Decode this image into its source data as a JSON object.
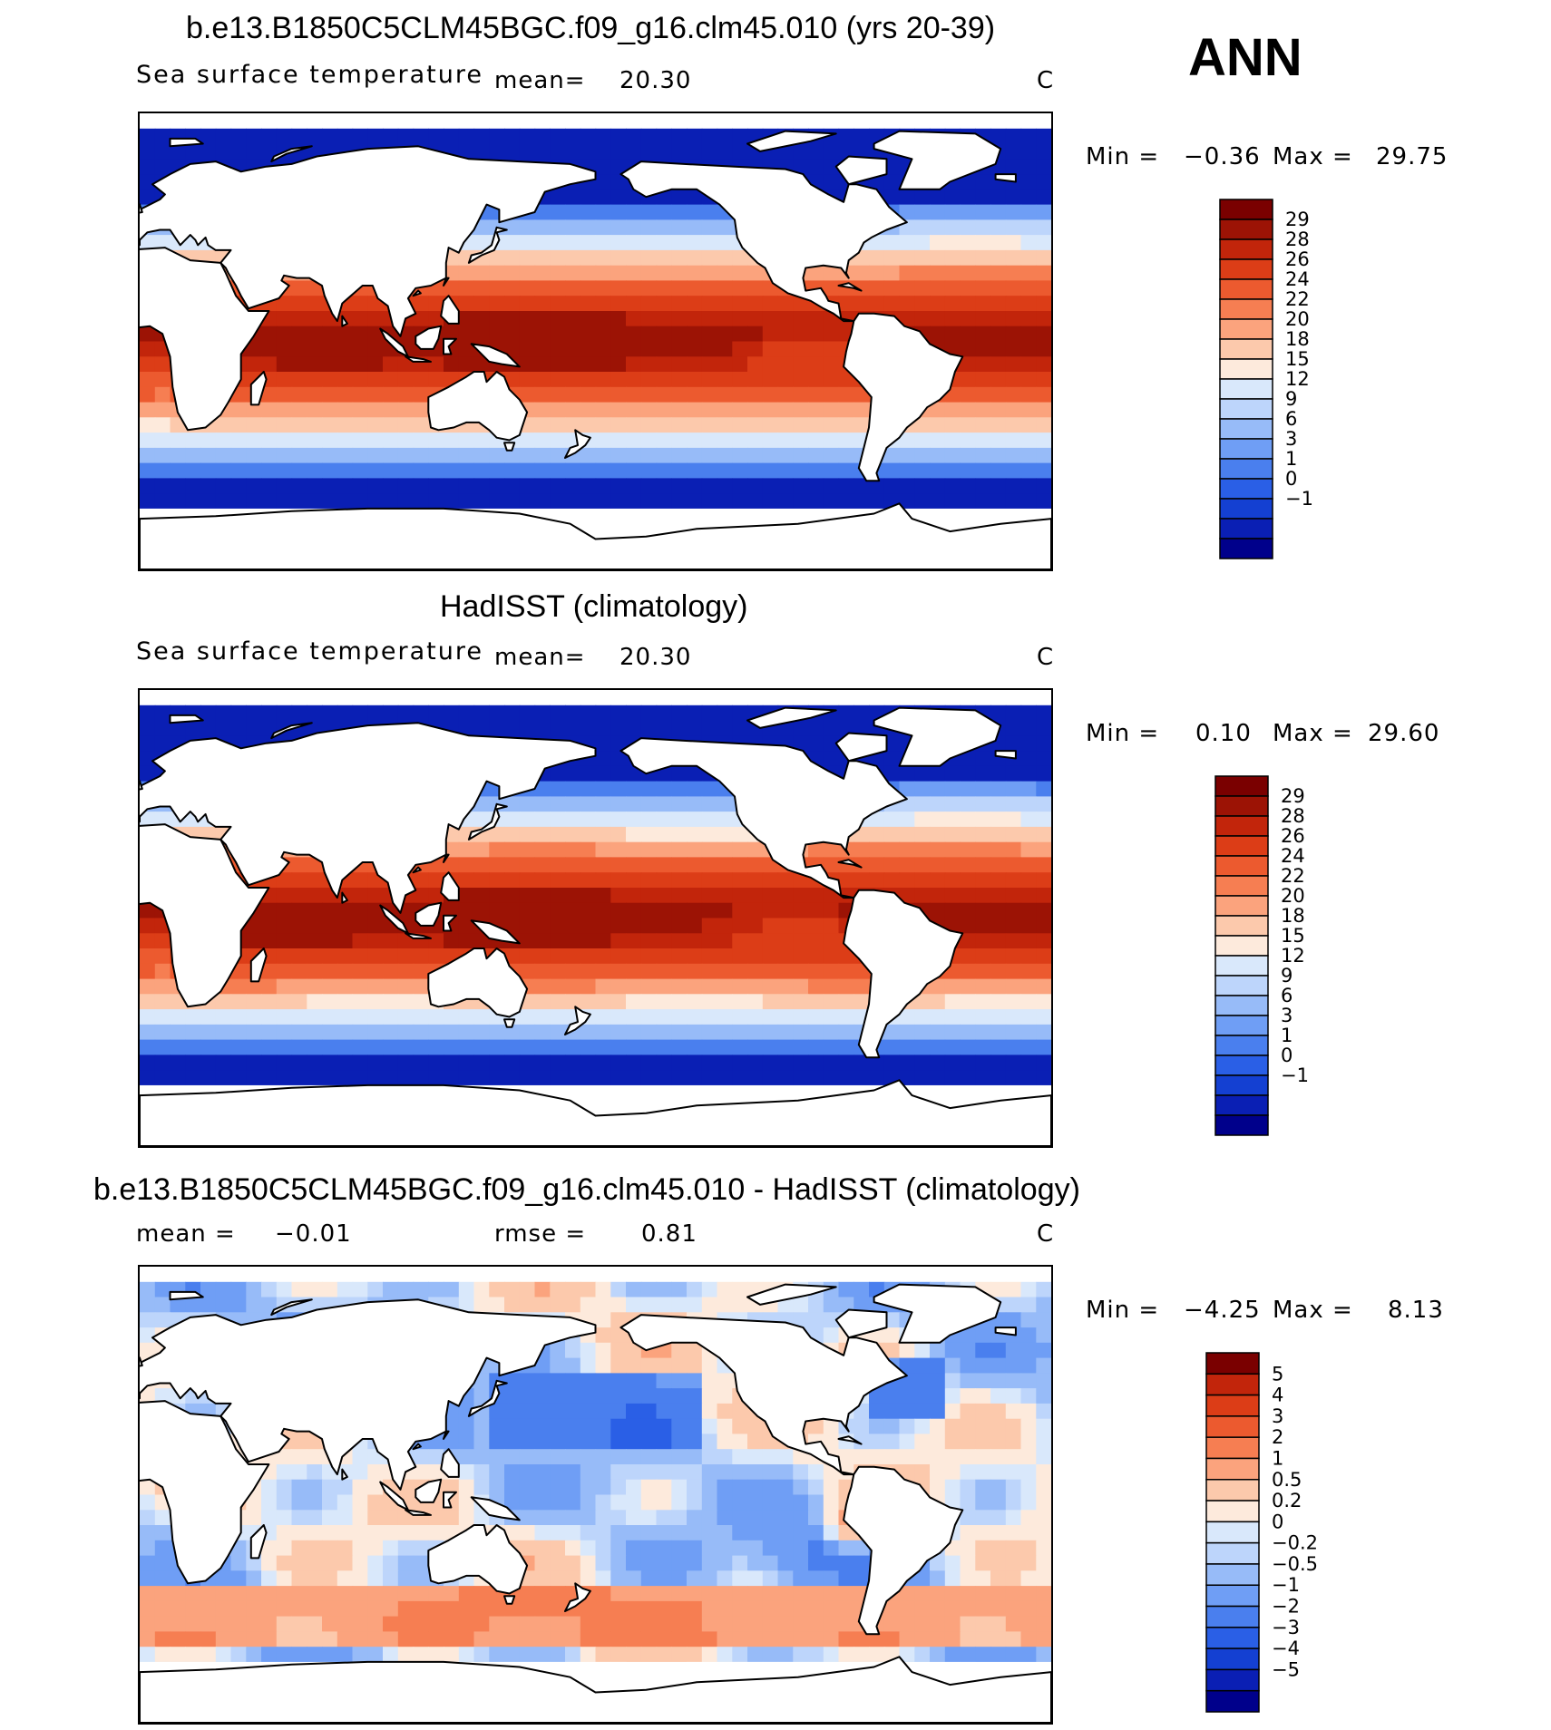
{
  "season": "ANN",
  "colors": {
    "model_levels": [
      "#00008b",
      "#0a1fb4",
      "#1440d2",
      "#2a5fe6",
      "#4a7fee",
      "#6f9ef5",
      "#97bbf8",
      "#bdd5fb",
      "#d9e8fb",
      "#fdeadc",
      "#fcc9ac",
      "#fba37d",
      "#f67e52",
      "#ec5a2f",
      "#dc3d17",
      "#c2250b",
      "#9c1305",
      "#7a0000"
    ],
    "diff_levels": [
      "#00008b",
      "#0a1fb4",
      "#1440d2",
      "#2a5fe6",
      "#4a7fee",
      "#6f9ef5",
      "#97bbf8",
      "#bdd5fb",
      "#d9e8fb",
      "#fdeadc",
      "#fcc9ac",
      "#fba37d",
      "#f67e52",
      "#ec5a2f",
      "#dc3d17",
      "#c2250b",
      "#7a0000"
    ]
  },
  "panels": [
    {
      "title": "b.e13.B1850C5CLM45BGC.f09_g16.clm45.010 (yrs 20-39)",
      "variable": "Sea surface temperature",
      "mean_label": "mean=",
      "mean_value": "20.30",
      "units": "C",
      "min_label": "Min =",
      "min_value": "−0.36",
      "max_label": "Max =",
      "max_value": "29.75",
      "colorbar_labels": [
        "29",
        "28",
        "26",
        "24",
        "22",
        "20",
        "18",
        "15",
        "12",
        "9",
        "6",
        "3",
        "1",
        "0",
        "−1"
      ]
    },
    {
      "title": "HadISST (climatology)",
      "variable": "Sea surface temperature",
      "mean_label": "mean=",
      "mean_value": "20.30",
      "units": "C",
      "min_label": "Min =",
      "min_value": "0.10",
      "max_label": "Max =",
      "max_value": "29.60",
      "colorbar_labels": [
        "29",
        "28",
        "26",
        "24",
        "22",
        "20",
        "18",
        "15",
        "12",
        "9",
        "6",
        "3",
        "1",
        "0",
        "−1"
      ]
    },
    {
      "title": "b.e13.B1850C5CLM45BGC.f09_g16.clm45.010 - HadISST (climatology)",
      "mean_label": "mean =",
      "mean_value": "−0.01",
      "rmse_label": "rmse =",
      "rmse_value": "0.81",
      "units": "C",
      "min_label": "Min =",
      "min_value": "−4.25",
      "max_label": "Max =",
      "max_value": "8.13",
      "colorbar_labels": [
        "5",
        "4",
        "3",
        "2",
        "1",
        "0.5",
        "0.2",
        "0",
        "−0.2",
        "−0.5",
        "−1",
        "−2",
        "−3",
        "−4",
        "−5"
      ]
    }
  ]
}
